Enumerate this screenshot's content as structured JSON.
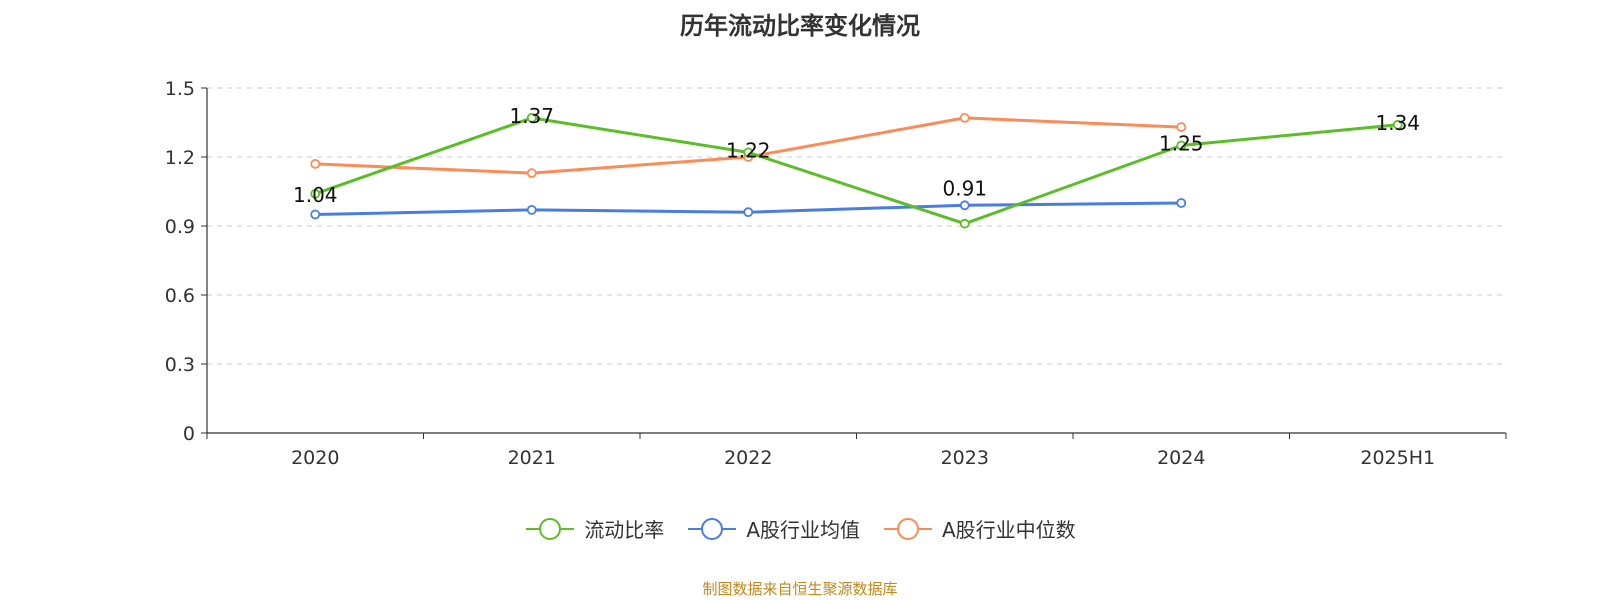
{
  "chart_data": {
    "type": "line",
    "title": "历年流动比率变化情况",
    "categories": [
      "2020",
      "2021",
      "2022",
      "2023",
      "2024",
      "2025H1"
    ],
    "ylim": [
      0,
      1.5
    ],
    "yticks": [
      "0",
      "0.3",
      "0.6",
      "0.9",
      "1.2",
      "1.5"
    ],
    "grid": true,
    "legend_position": "bottom",
    "series": [
      {
        "name": "流动比率",
        "color": "#5cbd28",
        "values": [
          1.04,
          1.37,
          1.22,
          0.91,
          1.25,
          1.34
        ],
        "labels": [
          "1.04",
          "1.37",
          "1.22",
          "0.91",
          "1.25",
          "1.34"
        ]
      },
      {
        "name": "A股行业均值",
        "color": "#4a7de0",
        "values": [
          0.95,
          0.97,
          0.96,
          0.99,
          1.0,
          null
        ]
      },
      {
        "name": "A股行业中位数",
        "color": "#fa8c58",
        "values": [
          1.17,
          1.13,
          1.2,
          1.37,
          1.33,
          null
        ]
      }
    ]
  },
  "source_note": "制图数据来自恒生聚源数据库"
}
